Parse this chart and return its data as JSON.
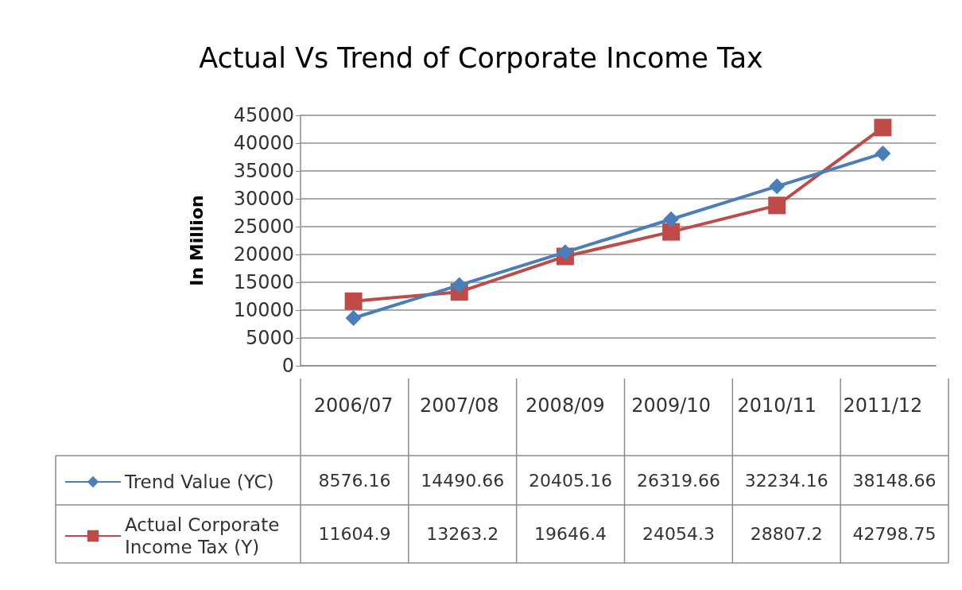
{
  "chart_data": {
    "type": "line",
    "title": "Actual Vs Trend of Corporate Income Tax",
    "ylabel": "In Million",
    "categories": [
      "2006/07",
      "2007/08",
      "2008/09",
      "2009/10",
      "2010/11",
      "2011/12"
    ],
    "series": [
      {
        "name": "Trend Value (YC)",
        "color": "#4a7ebb",
        "marker": "diamond",
        "values": [
          8576.16,
          14490.66,
          20405.16,
          26319.66,
          32234.16,
          38148.66
        ]
      },
      {
        "name": "Actual Corporate Income Tax (Y)",
        "color": "#be4b48",
        "marker": "square",
        "values": [
          11604.9,
          13263.2,
          19646.4,
          24054.3,
          28807.2,
          42798.75
        ]
      }
    ],
    "ylim": [
      0,
      45000
    ],
    "yticks": [
      0,
      5000,
      10000,
      15000,
      20000,
      25000,
      30000,
      35000,
      40000,
      45000
    ],
    "grid": "y",
    "legend": "bottom left",
    "data_labels": true
  }
}
